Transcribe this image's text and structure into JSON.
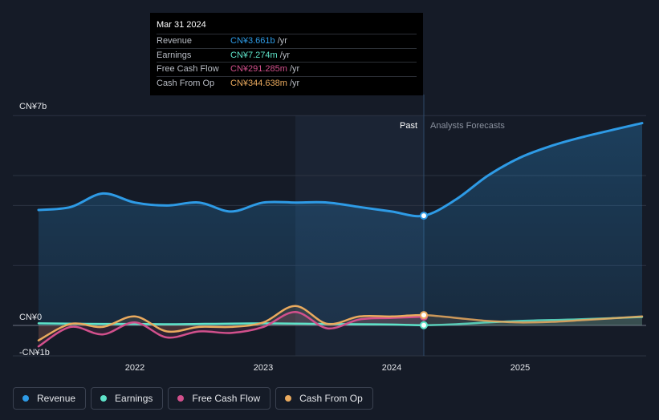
{
  "tooltip": {
    "date": "Mar 31 2024",
    "rows": [
      {
        "label": "Revenue",
        "value": "CN¥3.661b",
        "unit": " /yr",
        "color": "#2e9be6"
      },
      {
        "label": "Earnings",
        "value": "CN¥7.274m",
        "unit": " /yr",
        "color": "#5ee3c9"
      },
      {
        "label": "Free Cash Flow",
        "value": "CN¥291.285m",
        "unit": " /yr",
        "color": "#d2508c"
      },
      {
        "label": "Cash From Op",
        "value": "CN¥344.638m",
        "unit": " /yr",
        "color": "#eaaa5e"
      }
    ]
  },
  "legend": [
    {
      "label": "Revenue",
      "color": "#2e9be6"
    },
    {
      "label": "Earnings",
      "color": "#5ee3c9"
    },
    {
      "label": "Free Cash Flow",
      "color": "#d2508c"
    },
    {
      "label": "Cash From Op",
      "color": "#eaaa5e"
    }
  ],
  "chart_data": {
    "type": "line",
    "y_unit": "CN¥ billions",
    "ylim": [
      -1,
      7
    ],
    "xlim": [
      2021.25,
      2025.95
    ],
    "y_tick_labels": [
      {
        "value": 7,
        "label": "CN¥7b"
      },
      {
        "value": 0,
        "label": "CN¥0"
      },
      {
        "value": -1,
        "label": "-CN¥1b"
      }
    ],
    "x_tick_labels": [
      {
        "value": 2022.0,
        "label": "2022"
      },
      {
        "value": 2023.0,
        "label": "2023"
      },
      {
        "value": 2024.0,
        "label": "2024"
      },
      {
        "value": 2025.0,
        "label": "2025"
      }
    ],
    "gridlines": [
      7,
      5,
      4,
      2,
      0
    ],
    "past_label": "Past",
    "forecast_label": "Analysts Forecasts",
    "divider_x": 2024.25,
    "shade_start_x": 2023.25,
    "series": [
      {
        "name": "Revenue",
        "color": "#2e9be6",
        "x": [
          2021.25,
          2021.5,
          2021.75,
          2022.0,
          2022.25,
          2022.5,
          2022.75,
          2023.0,
          2023.25,
          2023.5,
          2023.75,
          2024.0,
          2024.25,
          2024.5,
          2024.75,
          2025.0,
          2025.25,
          2025.5,
          2025.95
        ],
        "y": [
          3.85,
          3.95,
          4.4,
          4.1,
          4.0,
          4.1,
          3.8,
          4.1,
          4.1,
          4.1,
          3.95,
          3.8,
          3.661,
          4.2,
          5.0,
          5.6,
          6.0,
          6.3,
          6.75
        ]
      },
      {
        "name": "Earnings",
        "color": "#5ee3c9",
        "x": [
          2021.25,
          2021.5,
          2021.75,
          2022.0,
          2022.25,
          2022.5,
          2022.75,
          2023.0,
          2023.25,
          2023.5,
          2023.75,
          2024.0,
          2024.25,
          2024.5,
          2024.75,
          2025.0,
          2025.25,
          2025.5,
          2025.95
        ],
        "y": [
          0.07,
          0.06,
          0.05,
          0.05,
          0.04,
          0.05,
          0.06,
          0.07,
          0.06,
          0.05,
          0.04,
          0.03,
          0.007,
          0.04,
          0.1,
          0.15,
          0.18,
          0.21,
          0.28
        ]
      },
      {
        "name": "Free Cash Flow",
        "color": "#d2508c",
        "x": [
          2021.25,
          2021.5,
          2021.75,
          2022.0,
          2022.25,
          2022.5,
          2022.75,
          2023.0,
          2023.25,
          2023.5,
          2023.75,
          2024.0,
          2024.25
        ],
        "y": [
          -0.7,
          -0.05,
          -0.3,
          0.1,
          -0.4,
          -0.2,
          -0.25,
          -0.05,
          0.45,
          -0.1,
          0.2,
          0.25,
          0.291
        ]
      },
      {
        "name": "Cash From Op",
        "color": "#eaaa5e",
        "x": [
          2021.25,
          2021.5,
          2021.75,
          2022.0,
          2022.25,
          2022.5,
          2022.75,
          2023.0,
          2023.25,
          2023.5,
          2023.75,
          2024.0,
          2024.25,
          2024.5,
          2024.75,
          2025.0,
          2025.25,
          2025.5,
          2025.95
        ],
        "y": [
          -0.5,
          0.05,
          -0.05,
          0.3,
          -0.2,
          -0.05,
          -0.05,
          0.1,
          0.65,
          0.05,
          0.3,
          0.3,
          0.345,
          0.25,
          0.15,
          0.1,
          0.12,
          0.18,
          0.3
        ]
      }
    ],
    "markers": [
      {
        "series": "Revenue",
        "x": 2024.25,
        "y": 3.661
      },
      {
        "series": "Earnings",
        "x": 2024.25,
        "y": 0.007
      },
      {
        "series": "Free Cash Flow",
        "x": 2024.25,
        "y": 0.291
      },
      {
        "series": "Cash From Op",
        "x": 2024.25,
        "y": 0.345
      }
    ]
  }
}
